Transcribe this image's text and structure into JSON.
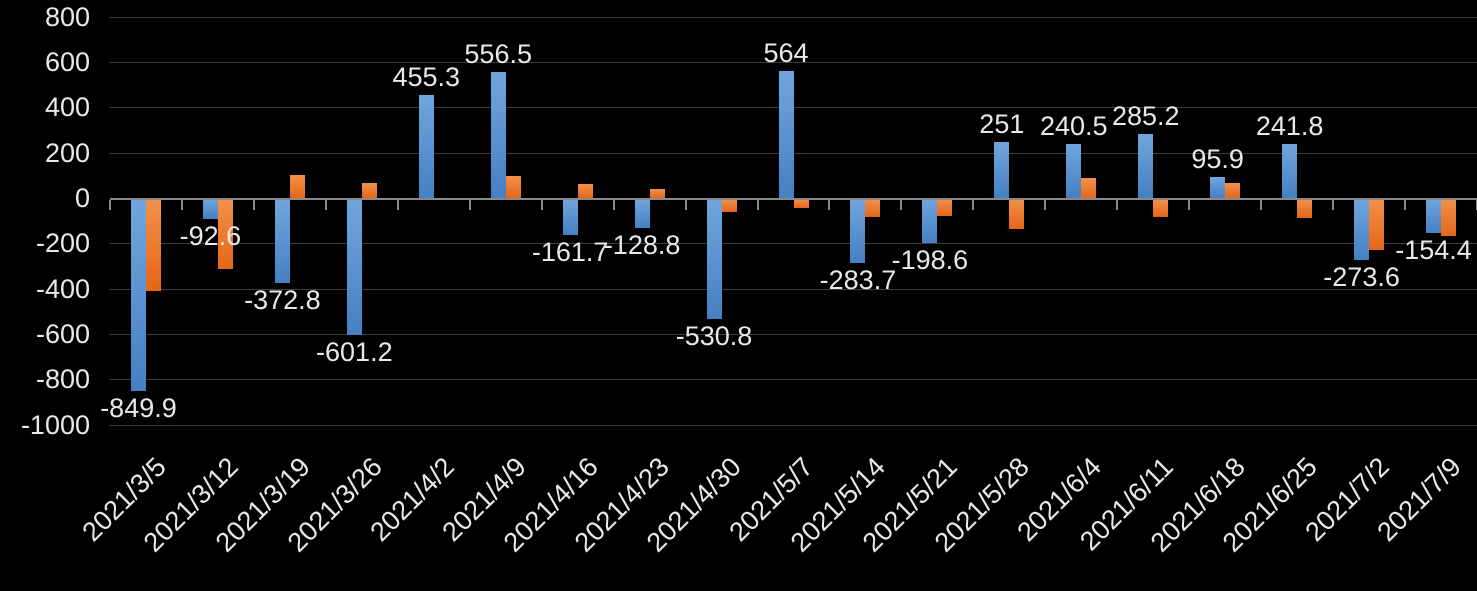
{
  "chart_data": {
    "type": "bar",
    "title": "",
    "categories": [
      "2021/3/5",
      "2021/3/12",
      "2021/3/19",
      "2021/3/26",
      "2021/4/2",
      "2021/4/9",
      "2021/4/16",
      "2021/4/23",
      "2021/4/30",
      "2021/5/7",
      "2021/5/14",
      "2021/5/21",
      "2021/5/28",
      "2021/6/4",
      "2021/6/11",
      "2021/6/18",
      "2021/6/25",
      "2021/7/2",
      "2021/7/9"
    ],
    "series": [
      {
        "name": "series-blue",
        "values": [
          -849.9,
          -92.6,
          -372.8,
          -601.2,
          455.3,
          556.5,
          -161.7,
          -128.8,
          -530.8,
          564,
          -283.7,
          -198.6,
          251,
          240.5,
          285.2,
          95.9,
          241.8,
          -273.6,
          -154.4
        ],
        "data_labels": [
          "-849.9",
          "-92.6",
          "-372.8",
          "-601.2",
          "455.3",
          "556.5",
          "-161.7",
          "-128.8",
          "-530.8",
          "564",
          "-283.7",
          "-198.6",
          "251",
          "240.5",
          "285.2",
          "95.9",
          "241.8",
          "-273.6",
          "-154.4"
        ],
        "labels_visible": true,
        "color_top": "#71A5DD",
        "color_bottom": "#4580C3"
      },
      {
        "name": "series-orange",
        "values": [
          -407,
          -310,
          105,
          70,
          3,
          101,
          65,
          43,
          -60,
          -43,
          -80,
          -77,
          -136,
          90,
          -80,
          67,
          -87,
          -228,
          -164
        ],
        "data_labels": [],
        "labels_visible": false,
        "color_top": "#F2914A",
        "color_bottom": "#E4661A"
      }
    ],
    "xlabel": "",
    "ylabel": "",
    "y_axis": {
      "min": -1000,
      "max": 800,
      "step": 200,
      "tick_labels": [
        "800",
        "600",
        "400",
        "200",
        "0",
        "-200",
        "-400",
        "-600",
        "-800",
        "-1000"
      ]
    },
    "grid": true,
    "legend": "none",
    "x_label_rotation_deg": 45,
    "colors": {
      "background": "#000000",
      "text": "#E9E9E9",
      "gridline": "#3E3E3E",
      "axis_line": "#8A8A8A"
    }
  }
}
